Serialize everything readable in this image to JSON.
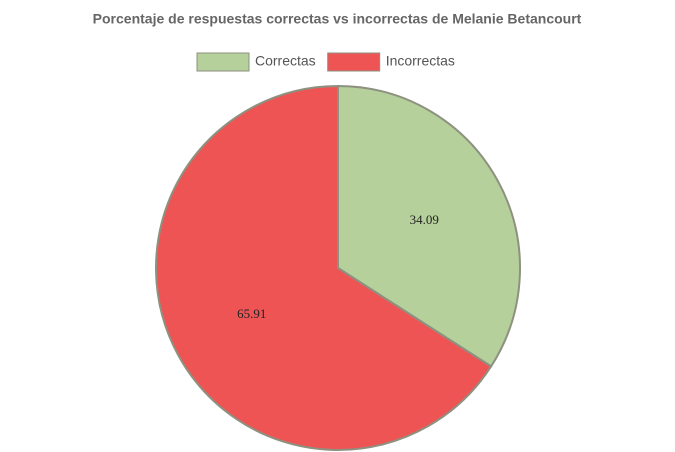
{
  "chart_data": {
    "type": "pie",
    "title": "Porcentaje de respuestas correctas vs incorrectas de Melanie Betancourt",
    "categories": [
      "Correctas",
      "Incorrectas"
    ],
    "values": [
      34.09,
      65.91
    ],
    "colors": [
      "#b5d09a",
      "#ef5455"
    ],
    "legend": "top"
  }
}
